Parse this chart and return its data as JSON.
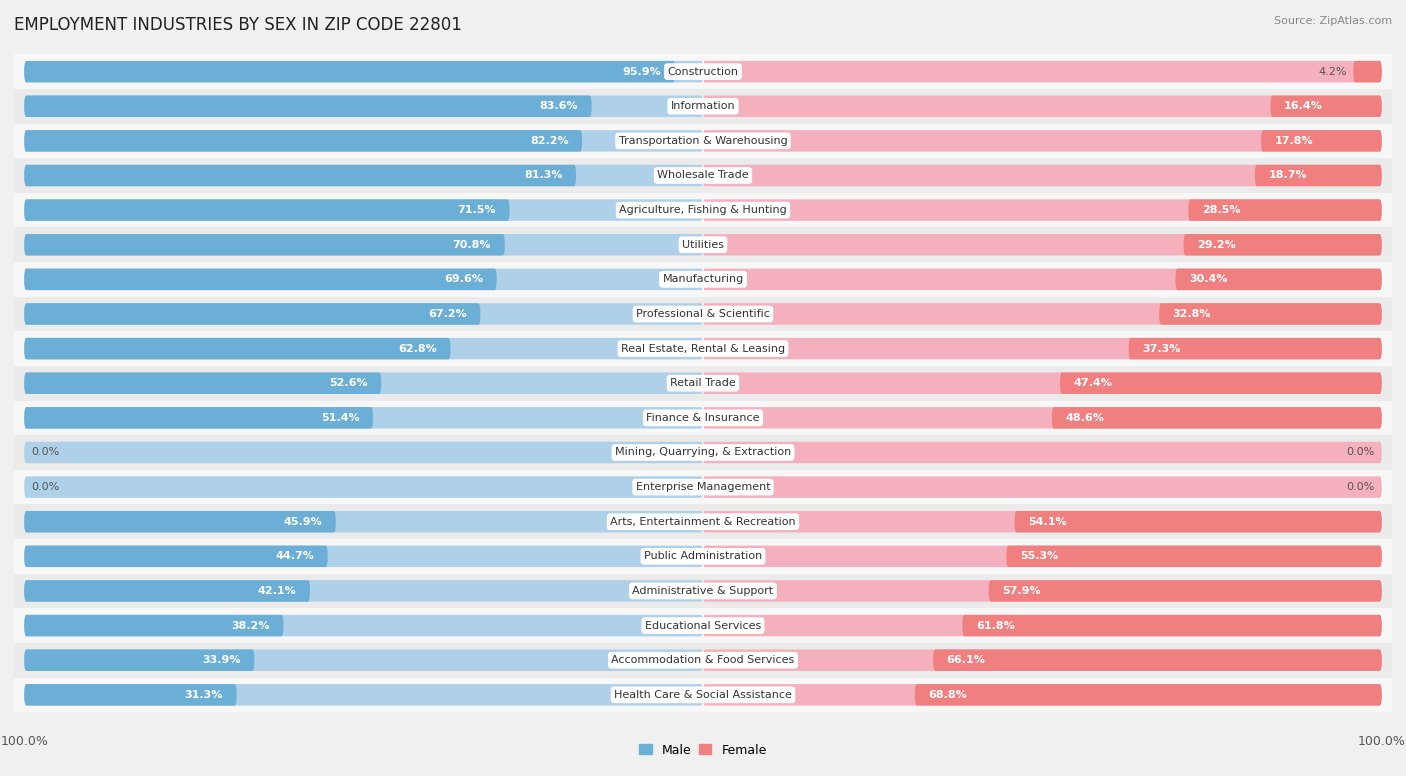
{
  "title": "EMPLOYMENT INDUSTRIES BY SEX IN ZIP CODE 22801",
  "source": "Source: ZipAtlas.com",
  "categories": [
    "Construction",
    "Information",
    "Transportation & Warehousing",
    "Wholesale Trade",
    "Agriculture, Fishing & Hunting",
    "Utilities",
    "Manufacturing",
    "Professional & Scientific",
    "Real Estate, Rental & Leasing",
    "Retail Trade",
    "Finance & Insurance",
    "Mining, Quarrying, & Extraction",
    "Enterprise Management",
    "Arts, Entertainment & Recreation",
    "Public Administration",
    "Administrative & Support",
    "Educational Services",
    "Accommodation & Food Services",
    "Health Care & Social Assistance"
  ],
  "male": [
    95.9,
    83.6,
    82.2,
    81.3,
    71.5,
    70.8,
    69.6,
    67.2,
    62.8,
    52.6,
    51.4,
    0.0,
    0.0,
    45.9,
    44.7,
    42.1,
    38.2,
    33.9,
    31.3
  ],
  "female": [
    4.2,
    16.4,
    17.8,
    18.7,
    28.5,
    29.2,
    30.4,
    32.8,
    37.3,
    47.4,
    48.6,
    0.0,
    0.0,
    54.1,
    55.3,
    57.9,
    61.8,
    66.1,
    68.8
  ],
  "male_color": "#6baed6",
  "female_color": "#f08080",
  "male_color_light": "#aed0e8",
  "female_color_light": "#f4b0bc",
  "row_color_odd": "#ebebeb",
  "row_color_even": "#f7f7f7",
  "bg_color": "#f0f0f0",
  "title_fontsize": 12,
  "source_fontsize": 8,
  "pct_fontsize": 8,
  "cat_fontsize": 8,
  "legend_fontsize": 9,
  "legend_male": "Male",
  "legend_female": "Female"
}
